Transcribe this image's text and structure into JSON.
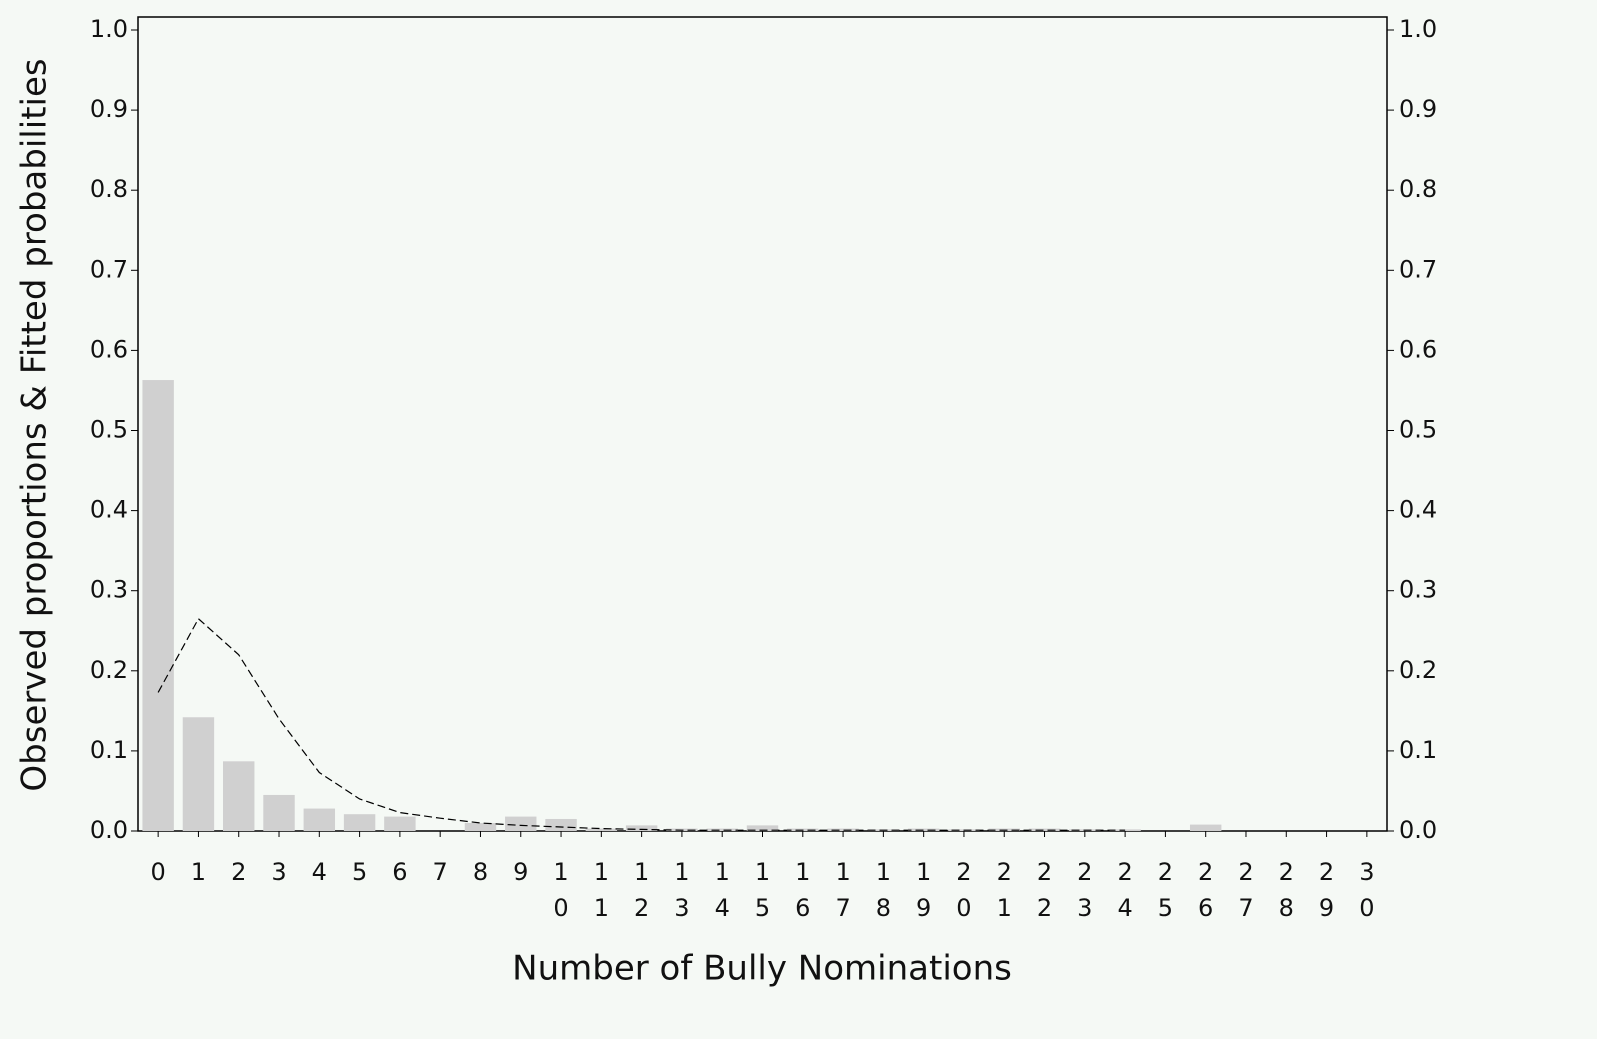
{
  "chart_data": {
    "type": "bar",
    "x_label": "Number of Bully Nominations",
    "y_label": "Observed proportions & Fitted probabilities",
    "categories": [
      "0",
      "1",
      "2",
      "3",
      "4",
      "5",
      "6",
      "7",
      "8",
      "9",
      "10",
      "11",
      "12",
      "13",
      "14",
      "15",
      "16",
      "17",
      "18",
      "19",
      "20",
      "21",
      "22",
      "23",
      "24",
      "25",
      "26",
      "27",
      "28",
      "29",
      "30"
    ],
    "series": [
      {
        "type": "bar",
        "color": "#d0d0d0",
        "values": [
          0.563,
          0.142,
          0.087,
          0.045,
          0.028,
          0.021,
          0.018,
          0,
          0.01,
          0.018,
          0.015,
          0.003,
          0.007,
          0.003,
          0.003,
          0.007,
          0.003,
          0.003,
          0.002,
          0.003,
          0.002,
          0.003,
          0.003,
          0.002,
          0.002,
          0,
          0.008,
          0,
          0,
          0,
          0
        ]
      },
      {
        "type": "line",
        "color": "#000000",
        "dashed": true,
        "values": [
          0.173,
          0.265,
          0.22,
          0.14,
          0.073,
          0.04,
          0.023,
          0.016,
          0.01,
          0.007,
          0.005,
          0.003,
          0.002,
          0.001,
          0.001,
          0.001,
          0.001,
          0.001,
          0.001,
          0.001,
          0.001,
          0.001,
          0.001,
          0.001,
          0.001,
          null,
          null,
          null,
          null,
          null,
          null
        ]
      }
    ],
    "ylim": [
      0,
      1.0
    ],
    "yticks": [
      {
        "value": 0,
        "label": "0.0"
      },
      {
        "value": 0.1,
        "label": "0.1"
      },
      {
        "value": 0.2,
        "label": "0.2"
      },
      {
        "value": 0.3,
        "label": "0.3"
      },
      {
        "value": 0.4,
        "label": "0.4"
      },
      {
        "value": 0.5,
        "label": "0.5"
      },
      {
        "value": 0.6,
        "label": "0.6"
      },
      {
        "value": 0.7,
        "label": "0.7"
      },
      {
        "value": 0.8,
        "label": "0.8"
      },
      {
        "value": 0.9,
        "label": "0.9"
      },
      {
        "value": 1.0,
        "label": "1.0"
      }
    ],
    "right_axis": true
  }
}
